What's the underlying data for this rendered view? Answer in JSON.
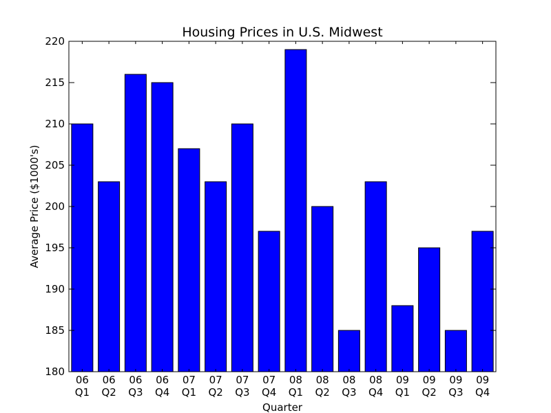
{
  "chart_data": {
    "type": "bar",
    "title": "Housing Prices in U.S. Midwest",
    "xlabel": "Quarter",
    "ylabel": "Average Price ($1000's)",
    "ylim": [
      180,
      220
    ],
    "yticks": [
      180,
      185,
      190,
      195,
      200,
      205,
      210,
      215,
      220
    ],
    "grid": false,
    "bar_color": "#0000ff",
    "categories": [
      [
        "06",
        "Q1"
      ],
      [
        "06",
        "Q2"
      ],
      [
        "06",
        "Q3"
      ],
      [
        "06",
        "Q4"
      ],
      [
        "07",
        "Q1"
      ],
      [
        "07",
        "Q2"
      ],
      [
        "07",
        "Q3"
      ],
      [
        "07",
        "Q4"
      ],
      [
        "08",
        "Q1"
      ],
      [
        "08",
        "Q2"
      ],
      [
        "08",
        "Q3"
      ],
      [
        "08",
        "Q4"
      ],
      [
        "09",
        "Q1"
      ],
      [
        "09",
        "Q2"
      ],
      [
        "09",
        "Q3"
      ],
      [
        "09",
        "Q4"
      ]
    ],
    "values": [
      210,
      203,
      216,
      215,
      207,
      203,
      210,
      197,
      219,
      200,
      185,
      203,
      188,
      195,
      185,
      197
    ]
  }
}
